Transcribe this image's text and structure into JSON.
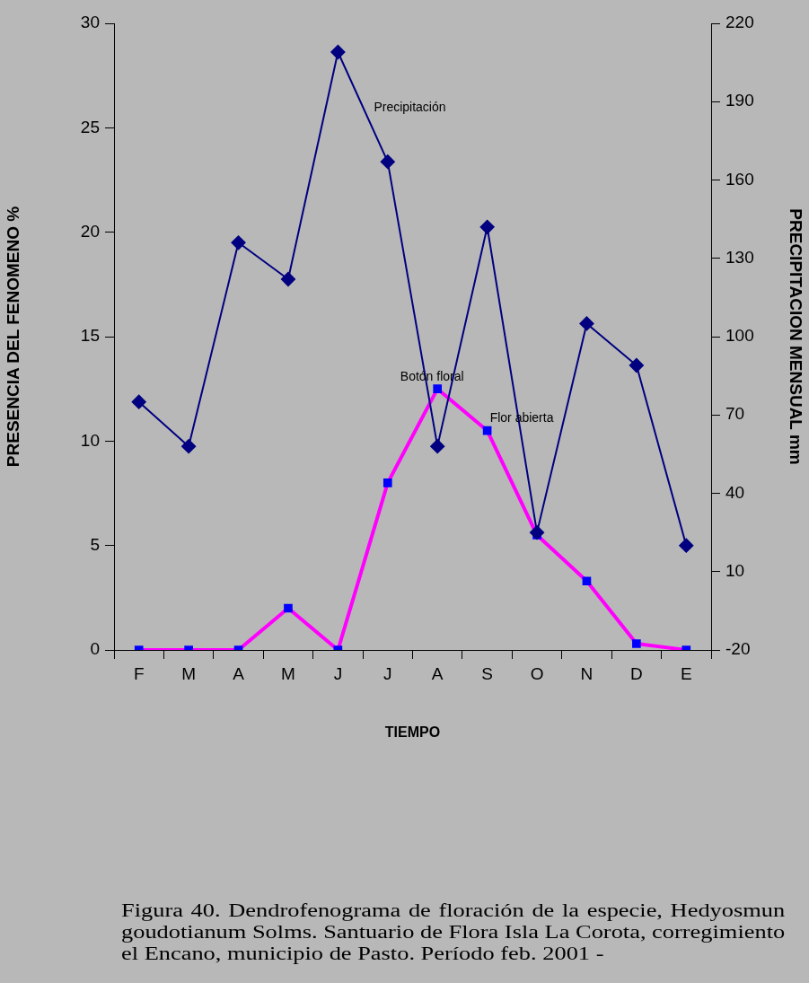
{
  "chart_data": {
    "type": "line",
    "xlabel": "TIEMPO",
    "ylabel": "PRESENCIA DEL FENOMENO %",
    "y2label": "PRECIPITACION MENSUAL mm",
    "categories": [
      "F",
      "M",
      "A",
      "M",
      "J",
      "J",
      "A",
      "S",
      "O",
      "N",
      "D",
      "E"
    ],
    "series": [
      {
        "name": "Precipitación",
        "color": "#000080",
        "axis": "y2",
        "marker": "diamond",
        "values": [
          75,
          58,
          136,
          122,
          209,
          167,
          58,
          142,
          25,
          105,
          89,
          20
        ]
      },
      {
        "name": "Botón floral",
        "color": "#ff00ff",
        "marker": "square",
        "values": [
          0,
          0,
          0,
          2,
          0,
          8,
          12.5,
          10.5,
          5.5,
          3.3,
          0.3,
          0
        ]
      }
    ],
    "ylim": [
      0,
      30
    ],
    "yticks": [
      0,
      5,
      10,
      15,
      20,
      25,
      30
    ],
    "y2lim": [
      -20,
      220
    ],
    "y2ticks": [
      -20,
      10,
      40,
      70,
      100,
      130,
      160,
      190,
      220
    ],
    "grid": false,
    "legend": false,
    "annotations": [
      {
        "text": "Flor abierta",
        "x": "S",
        "y": 10.5
      },
      "Figura 40.  Dendrofenograma de floración de la especie, Hedyosmun goudotianum Solms. Santuario de Flora Isla La Corota, corregimiento el Encano, municipio de Pasto. Período feb. 2001 -"
    ]
  }
}
